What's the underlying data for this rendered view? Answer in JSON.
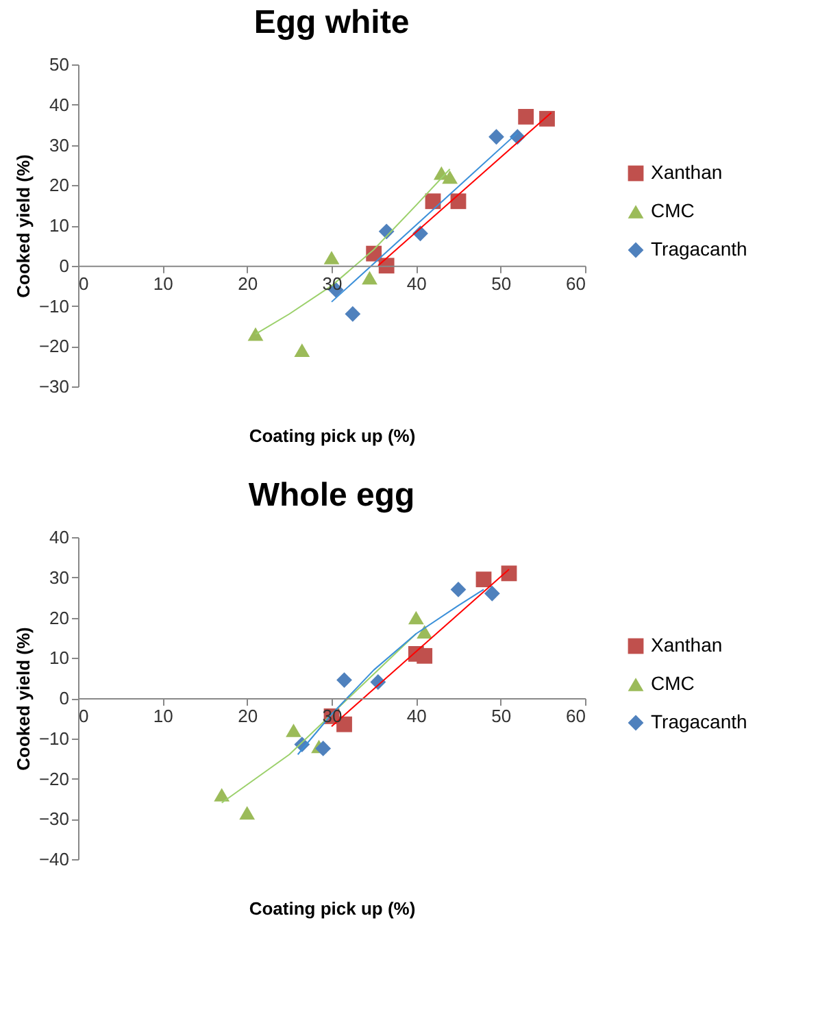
{
  "chart_data": [
    {
      "type": "scatter",
      "title": "Egg white",
      "xlabel": "Coating pick up (%)",
      "ylabel": "Cooked yield (%)",
      "xlim": [
        0,
        60
      ],
      "xticks": [
        0,
        10,
        20,
        30,
        40,
        50,
        60
      ],
      "ylim": [
        -30,
        50
      ],
      "yticks": [
        -30,
        -20,
        -10,
        0,
        10,
        20,
        30,
        40,
        50
      ],
      "legend": "right",
      "grid": false,
      "series": [
        {
          "name": "Xanthan",
          "color": "#c0504d",
          "marker": "square",
          "x": [
            35,
            36.5,
            42,
            45,
            53,
            55.5
          ],
          "values": [
            3,
            0,
            16,
            16,
            37,
            36.5
          ]
        },
        {
          "name": "CMC",
          "color": "#9bbb59",
          "marker": "triangle",
          "x": [
            21,
            26.5,
            30,
            34.5,
            43,
            44
          ],
          "values": [
            -17,
            -21,
            2,
            -3,
            23,
            22
          ]
        },
        {
          "name": "Tragacanth",
          "color": "#4f81bd",
          "marker": "diamond",
          "x": [
            30.5,
            32.5,
            36.5,
            40.5,
            49.5,
            52
          ],
          "values": [
            -6,
            -12,
            8.5,
            8,
            32,
            32
          ]
        },
        {
          "type": "line",
          "color": "#ff0000",
          "line_style": "solid",
          "x": [
            35.5,
            56
          ],
          "values": [
            0,
            38
          ]
        },
        {
          "type": "line",
          "color": "#9bd06a",
          "line_style": "solid",
          "x": [
            21,
            25,
            30,
            35,
            40,
            44
          ],
          "values": [
            -17,
            -12,
            -5,
            4,
            15,
            24
          ]
        },
        {
          "type": "line",
          "color": "#3a8fd9",
          "line_style": "solid",
          "x": [
            30,
            52
          ],
          "values": [
            -9,
            33
          ]
        }
      ]
    },
    {
      "type": "scatter",
      "title": "Whole egg",
      "xlabel": "Coating pick up (%)",
      "ylabel": "Cooked yield (%)",
      "xlim": [
        0,
        60
      ],
      "xticks": [
        0,
        10,
        20,
        30,
        40,
        50,
        60
      ],
      "ylim": [
        -40,
        40
      ],
      "yticks": [
        -40,
        -30,
        -20,
        -10,
        0,
        10,
        20,
        30,
        40
      ],
      "legend": "right",
      "grid": false,
      "series": [
        {
          "name": "Xanthan",
          "color": "#c0504d",
          "marker": "square",
          "x": [
            30,
            31.5,
            40,
            41,
            48,
            51
          ],
          "values": [
            -4.5,
            -6.5,
            11,
            10.5,
            29.5,
            31
          ]
        },
        {
          "name": "CMC",
          "color": "#9bbb59",
          "marker": "triangle",
          "x": [
            17,
            20,
            25.5,
            28.5,
            40,
            41
          ],
          "values": [
            -24,
            -28.5,
            -8,
            -12,
            20,
            16.5
          ]
        },
        {
          "name": "Tragacanth",
          "color": "#4f81bd",
          "marker": "diamond",
          "x": [
            26.5,
            29,
            31.5,
            35.5,
            45,
            49
          ],
          "values": [
            -11.5,
            -12.5,
            4.5,
            4,
            27,
            26
          ]
        },
        {
          "type": "line",
          "color": "#ff0000",
          "line_style": "solid",
          "x": [
            30,
            51
          ],
          "values": [
            -7,
            32
          ]
        },
        {
          "type": "line",
          "color": "#9bd06a",
          "line_style": "solid",
          "x": [
            17,
            25,
            30,
            35,
            40
          ],
          "values": [
            -26,
            -14,
            -4,
            6,
            16
          ]
        },
        {
          "type": "line",
          "color": "#3a8fd9",
          "line_style": "solid",
          "x": [
            26,
            30,
            35,
            40,
            45,
            48
          ],
          "values": [
            -14,
            -4,
            7,
            16,
            23,
            27
          ]
        }
      ]
    }
  ]
}
